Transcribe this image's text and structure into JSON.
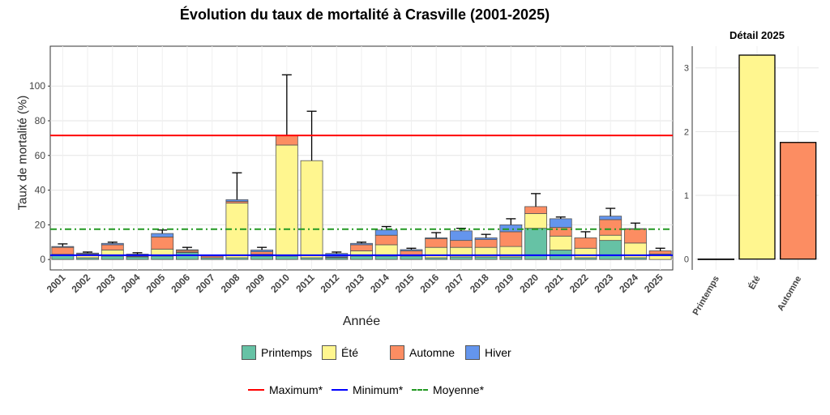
{
  "chart_data": [
    {
      "type": "bar",
      "stacked": true,
      "title": "Évolution du taux de mortalité à Crasville (2001-2025)",
      "xlabel": "Année",
      "ylabel": "Taux de mortalité (%)",
      "ylim": [
        -6,
        123
      ],
      "yticks": [
        0,
        20,
        40,
        60,
        80,
        100
      ],
      "categories": [
        "2001",
        "2002",
        "2003",
        "2004",
        "2005",
        "2006",
        "2007",
        "2008",
        "2009",
        "2010",
        "2011",
        "2012",
        "2013",
        "2014",
        "2015",
        "2016",
        "2017",
        "2018",
        "2019",
        "2020",
        "2021",
        "2022",
        "2023",
        "2024",
        "2025"
      ],
      "series": [
        {
          "name": "Printemps",
          "color": "#66C2A5",
          "values": [
            2.5,
            1,
            2,
            1.5,
            2,
            4,
            1,
            1,
            2,
            2,
            1,
            1,
            2,
            2,
            2,
            1,
            1.5,
            1.5,
            1.5,
            18,
            5.5,
            1,
            11,
            1,
            0
          ]
        },
        {
          "name": "Été",
          "color": "#FFF68F",
          "values": [
            0.5,
            1.5,
            3.5,
            0.3,
            4,
            0.3,
            0,
            31.5,
            1,
            64,
            56,
            0.3,
            3,
            6.5,
            0.5,
            6,
            5.5,
            5.5,
            6,
            8.5,
            8,
            5.5,
            3,
            8.5,
            3.2
          ]
        },
        {
          "name": "Automne",
          "color": "#FC8D62",
          "values": [
            4,
            0.7,
            3,
            0.5,
            7,
            1,
            1,
            1,
            1.5,
            5.5,
            0,
            0.2,
            3.5,
            5.5,
            2.5,
            5,
            4,
            4.5,
            8.5,
            4,
            5,
            6,
            9,
            8,
            1.8
          ]
        },
        {
          "name": "Hiver",
          "color": "#6495ED",
          "values": [
            0.5,
            0.5,
            0.8,
            0.8,
            2,
            0.3,
            0.5,
            1,
            1,
            0,
            0,
            2,
            0.8,
            3,
            0.7,
            0.5,
            5.5,
            1,
            4,
            0,
            5,
            0,
            2,
            0.3,
            0
          ]
        }
      ],
      "error_upper": [
        9,
        4.3,
        10,
        3.9,
        17,
        7,
        null,
        50,
        7,
        106.5,
        85.5,
        4.3,
        10,
        19,
        6.5,
        15.5,
        18,
        14.5,
        23.5,
        38,
        24.5,
        16,
        29.5,
        21,
        6.5
      ],
      "reference_lines": [
        {
          "name": "Maximum*",
          "value": 71.5,
          "color": "#FF0000",
          "style": "solid"
        },
        {
          "name": "Minimum*",
          "value": 2.5,
          "color": "#0000FF",
          "style": "solid"
        },
        {
          "name": "Moyenne*",
          "value": 17.5,
          "color": "#229922",
          "style": "dotdash"
        }
      ],
      "legend": "bottom"
    },
    {
      "type": "bar",
      "title": "Détail 2025",
      "categories": [
        "Printemps",
        "Été",
        "Automne"
      ],
      "values": [
        0,
        3.2,
        1.83
      ],
      "colors": [
        "#66C2A5",
        "#FFF68F",
        "#FC8D62"
      ],
      "ylim": [
        -0.17,
        3.34
      ],
      "yticks": [
        0,
        1,
        2,
        3
      ]
    }
  ]
}
